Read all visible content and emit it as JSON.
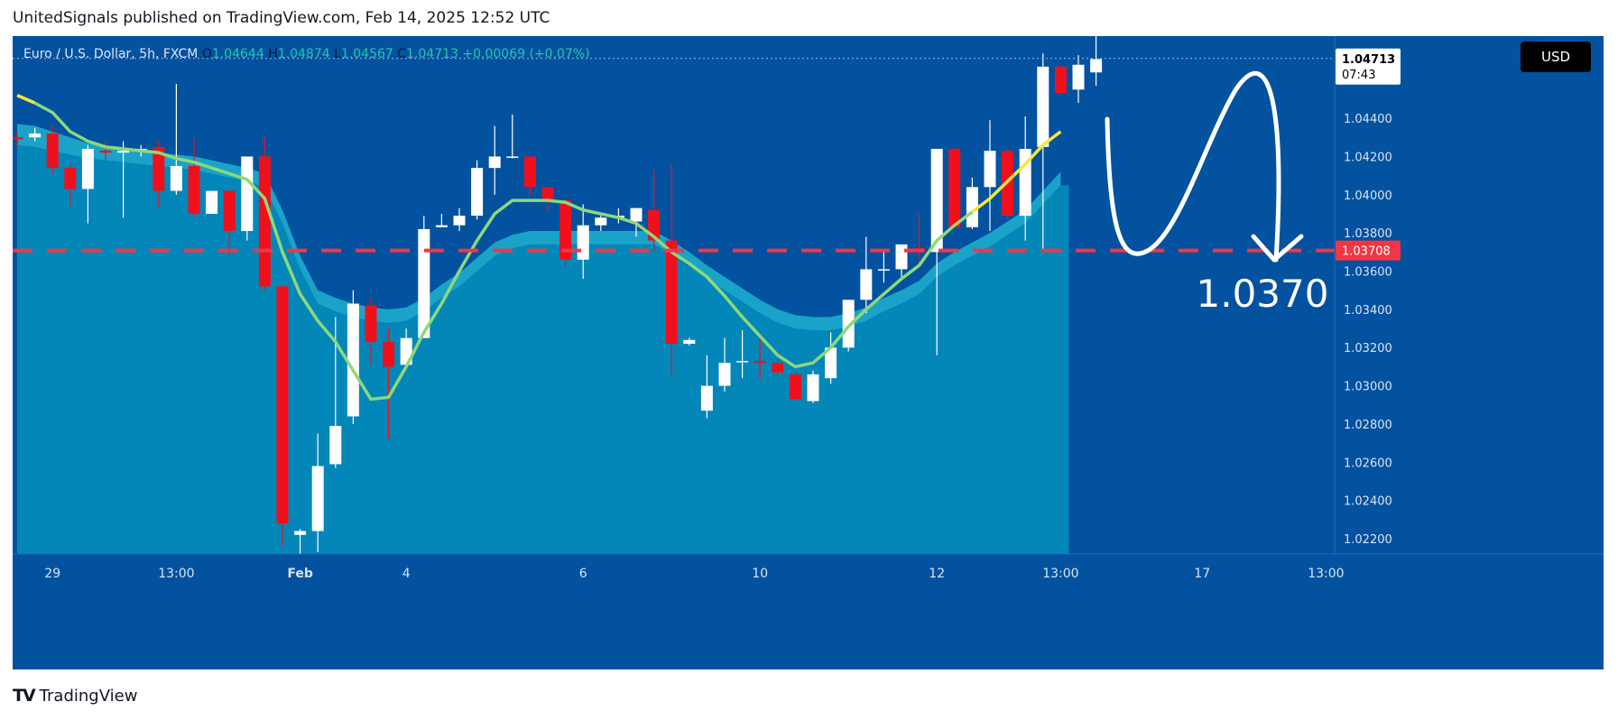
{
  "header": {
    "text": "UnitedSignals published on TradingView.com, Feb 14, 2025 12:52 UTC"
  },
  "legend": {
    "symbol": "Euro / U.S. Dollar, 5h, FXCM",
    "o_label": "O",
    "o_value": "1.04644",
    "h_label": "H",
    "h_value": "1.04874",
    "l_label": "L",
    "l_value": "1.04567",
    "c_label": "C",
    "c_value": "1.04713",
    "change": "+0.00069 (+0.07%)"
  },
  "currency_button": "USD",
  "price_labels": {
    "current": "1.04713",
    "countdown": "07:43",
    "target": "1.03708",
    "big_annotation": "1.0370"
  },
  "footer": {
    "logo_text": "TradingView"
  },
  "colors": {
    "background": "#0352a0",
    "area_fill": "#0387b9",
    "area_band": "#1aa3c9",
    "bull_candle": "#ffffff",
    "bear_candle": "#f0101c",
    "fast_ma_bright": "#f5e83a",
    "fast_ma_dim": "#8ed87a",
    "target_line": "#f23645",
    "arrow": "#ffffff"
  },
  "chart_data": {
    "type": "candlestick",
    "symbol": "EURUSD",
    "timeframe": "5h",
    "y_ticks": [
      1.022,
      1.024,
      1.026,
      1.028,
      1.03,
      1.032,
      1.034,
      1.036,
      1.038,
      1.04,
      1.042,
      1.044
    ],
    "y_tick_labels": [
      "1.02200",
      "1.02400",
      "1.02600",
      "1.02800",
      "1.03000",
      "1.03200",
      "1.03400",
      "1.03600",
      "1.03800",
      "1.04000",
      "1.04200",
      "1.04400"
    ],
    "ylim": [
      1.0212,
      1.0483
    ],
    "x_tick_labels": [
      {
        "label": "29",
        "index": 2
      },
      {
        "label": "13:00",
        "index": 9
      },
      {
        "label": "Feb",
        "index": 16,
        "bold": true
      },
      {
        "label": "4",
        "index": 22
      },
      {
        "label": "6",
        "index": 32
      },
      {
        "label": "10",
        "index": 42
      },
      {
        "label": "12",
        "index": 52
      },
      {
        "label": "13:00",
        "index": 59
      },
      {
        "label": "17",
        "index": 67
      },
      {
        "label": "13:00",
        "index": 74
      }
    ],
    "candles": [
      {
        "o": 1.043,
        "h": 1.0433,
        "l": 1.0425,
        "c": 1.0429
      },
      {
        "o": 1.043,
        "h": 1.0435,
        "l": 1.0428,
        "c": 1.0432
      },
      {
        "o": 1.0432,
        "h": 1.0436,
        "l": 1.0411,
        "c": 1.0414
      },
      {
        "o": 1.0414,
        "h": 1.0416,
        "l": 1.0394,
        "c": 1.0403
      },
      {
        "o": 1.0403,
        "h": 1.0426,
        "l": 1.0385,
        "c": 1.0424
      },
      {
        "o": 1.0423,
        "h": 1.0428,
        "l": 1.0418,
        "c": 1.0422
      },
      {
        "o": 1.0422,
        "h": 1.0428,
        "l": 1.0388,
        "c": 1.0423
      },
      {
        "o": 1.0423,
        "h": 1.0426,
        "l": 1.042,
        "c": 1.0424
      },
      {
        "o": 1.0425,
        "h": 1.0428,
        "l": 1.0393,
        "c": 1.0402
      },
      {
        "o": 1.0402,
        "h": 1.0458,
        "l": 1.04,
        "c": 1.0415
      },
      {
        "o": 1.0415,
        "h": 1.043,
        "l": 1.0388,
        "c": 1.039
      },
      {
        "o": 1.039,
        "h": 1.0402,
        "l": 1.039,
        "c": 1.0402
      },
      {
        "o": 1.0402,
        "h": 1.0403,
        "l": 1.0368,
        "c": 1.0381
      },
      {
        "o": 1.0381,
        "h": 1.042,
        "l": 1.0376,
        "c": 1.042
      },
      {
        "o": 1.042,
        "h": 1.043,
        "l": 1.035,
        "c": 1.0352
      },
      {
        "o": 1.0352,
        "h": 1.0353,
        "l": 1.0216,
        "c": 1.0228
      },
      {
        "o": 1.0222,
        "h": 1.0225,
        "l": 1.0212,
        "c": 1.0224
      },
      {
        "o": 1.0224,
        "h": 1.0275,
        "l": 1.0213,
        "c": 1.0258
      },
      {
        "o": 1.0259,
        "h": 1.0336,
        "l": 1.0257,
        "c": 1.0279
      },
      {
        "o": 1.0284,
        "h": 1.035,
        "l": 1.028,
        "c": 1.0343
      },
      {
        "o": 1.0342,
        "h": 1.0346,
        "l": 1.0311,
        "c": 1.0323
      },
      {
        "o": 1.0323,
        "h": 1.033,
        "l": 1.0272,
        "c": 1.031
      },
      {
        "o": 1.0311,
        "h": 1.033,
        "l": 1.031,
        "c": 1.0325
      },
      {
        "o": 1.0325,
        "h": 1.0389,
        "l": 1.0325,
        "c": 1.0382
      },
      {
        "o": 1.0383,
        "h": 1.039,
        "l": 1.0383,
        "c": 1.0384
      },
      {
        "o": 1.0384,
        "h": 1.0393,
        "l": 1.0381,
        "c": 1.0389
      },
      {
        "o": 1.0389,
        "h": 1.0418,
        "l": 1.0387,
        "c": 1.0414
      },
      {
        "o": 1.0414,
        "h": 1.0436,
        "l": 1.04,
        "c": 1.042
      },
      {
        "o": 1.042,
        "h": 1.0442,
        "l": 1.0419,
        "c": 1.042
      },
      {
        "o": 1.042,
        "h": 1.042,
        "l": 1.04,
        "c": 1.0404
      },
      {
        "o": 1.0404,
        "h": 1.0404,
        "l": 1.0391,
        "c": 1.0397
      },
      {
        "o": 1.0397,
        "h": 1.0398,
        "l": 1.0362,
        "c": 1.0366
      },
      {
        "o": 1.0366,
        "h": 1.0395,
        "l": 1.0356,
        "c": 1.0384
      },
      {
        "o": 1.0384,
        "h": 1.0389,
        "l": 1.0381,
        "c": 1.0388
      },
      {
        "o": 1.0388,
        "h": 1.0393,
        "l": 1.0385,
        "c": 1.0389
      },
      {
        "o": 1.0386,
        "h": 1.0393,
        "l": 1.0378,
        "c": 1.0393
      },
      {
        "o": 1.0392,
        "h": 1.0413,
        "l": 1.037,
        "c": 1.0376
      },
      {
        "o": 1.0376,
        "h": 1.0416,
        "l": 1.0305,
        "c": 1.0322
      },
      {
        "o": 1.0322,
        "h": 1.0325,
        "l": 1.0321,
        "c": 1.0324
      },
      {
        "o": 1.0287,
        "h": 1.0316,
        "l": 1.0283,
        "c": 1.03
      },
      {
        "o": 1.03,
        "h": 1.0325,
        "l": 1.0297,
        "c": 1.0312
      },
      {
        "o": 1.0313,
        "h": 1.0329,
        "l": 1.0304,
        "c": 1.0313
      },
      {
        "o": 1.0313,
        "h": 1.0325,
        "l": 1.0303,
        "c": 1.0312
      },
      {
        "o": 1.0312,
        "h": 1.0314,
        "l": 1.0305,
        "c": 1.0307
      },
      {
        "o": 1.0306,
        "h": 1.0307,
        "l": 1.0293,
        "c": 1.0293
      },
      {
        "o": 1.0292,
        "h": 1.0308,
        "l": 1.0291,
        "c": 1.0306
      },
      {
        "o": 1.0304,
        "h": 1.0328,
        "l": 1.0301,
        "c": 1.032
      },
      {
        "o": 1.032,
        "h": 1.0345,
        "l": 1.0318,
        "c": 1.0345
      },
      {
        "o": 1.0345,
        "h": 1.0378,
        "l": 1.0338,
        "c": 1.0361
      },
      {
        "o": 1.0361,
        "h": 1.037,
        "l": 1.0354,
        "c": 1.0361
      },
      {
        "o": 1.0361,
        "h": 1.0373,
        "l": 1.0357,
        "c": 1.0374
      },
      {
        "o": 1.0372,
        "h": 1.039,
        "l": 1.0364,
        "c": 1.037
      },
      {
        "o": 1.037,
        "h": 1.0424,
        "l": 1.0316,
        "c": 1.0424
      },
      {
        "o": 1.0424,
        "h": 1.0425,
        "l": 1.0383,
        "c": 1.0383
      },
      {
        "o": 1.0383,
        "h": 1.0409,
        "l": 1.0382,
        "c": 1.0404
      },
      {
        "o": 1.0404,
        "h": 1.0439,
        "l": 1.0381,
        "c": 1.0423
      },
      {
        "o": 1.0423,
        "h": 1.0424,
        "l": 1.0387,
        "c": 1.0389
      },
      {
        "o": 1.0389,
        "h": 1.0441,
        "l": 1.0376,
        "c": 1.0424
      },
      {
        "o": 1.0425,
        "h": 1.0474,
        "l": 1.0371,
        "c": 1.0467
      },
      {
        "o": 1.0467,
        "h": 1.0468,
        "l": 1.0453,
        "c": 1.0453
      },
      {
        "o": 1.0455,
        "h": 1.0473,
        "l": 1.0448,
        "c": 1.0468
      },
      {
        "o": 1.0464,
        "h": 1.0487,
        "l": 1.0457,
        "c": 1.0471
      }
    ],
    "fast_ma": [
      1.0452,
      1.0448,
      1.0443,
      1.0433,
      1.0428,
      1.0425,
      1.0424,
      1.0423,
      1.0422,
      1.0419,
      1.0417,
      1.0414,
      1.0411,
      1.0408,
      1.0398,
      1.037,
      1.0348,
      1.0334,
      1.0323,
      1.0308,
      1.0293,
      1.0294,
      1.031,
      1.0328,
      1.0343,
      1.036,
      1.0376,
      1.039,
      1.0397,
      1.0397,
      1.0397,
      1.0396,
      1.0392,
      1.039,
      1.0388,
      1.0385,
      1.0378,
      1.037,
      1.0364,
      1.0357,
      1.0347,
      1.0336,
      1.0326,
      1.0316,
      1.031,
      1.0312,
      1.032,
      1.0331,
      1.034,
      1.0348,
      1.0356,
      1.0363,
      1.0376,
      1.0384,
      1.0391,
      1.0398,
      1.0407,
      1.0416,
      1.0426,
      1.0433
    ],
    "area_upper": [
      1.0437,
      1.0436,
      1.0433,
      1.043,
      1.0427,
      1.0425,
      1.0424,
      1.0423,
      1.0422,
      1.0421,
      1.042,
      1.0418,
      1.0416,
      1.0414,
      1.0411,
      1.0392,
      1.0368,
      1.035,
      1.0346,
      1.0343,
      1.0341,
      1.034,
      1.0341,
      1.0346,
      1.0353,
      1.0359,
      1.0367,
      1.0375,
      1.0379,
      1.0381,
      1.0381,
      1.0381,
      1.0381,
      1.0381,
      1.0381,
      1.0381,
      1.0381,
      1.0376,
      1.037,
      1.0363,
      1.0357,
      1.0351,
      1.0345,
      1.034,
      1.0337,
      1.0336,
      1.0336,
      1.0338,
      1.0341,
      1.0346,
      1.035,
      1.0355,
      1.0364,
      1.037,
      1.0375,
      1.038,
      1.0386,
      1.0392,
      1.0402,
      1.0412
    ],
    "area_lower": [
      1.0426,
      1.0425,
      1.0423,
      1.0421,
      1.0419,
      1.0418,
      1.0417,
      1.0416,
      1.0415,
      1.0414,
      1.0413,
      1.0411,
      1.0409,
      1.0407,
      1.0404,
      1.0385,
      1.0361,
      1.0343,
      1.0339,
      1.0336,
      1.0334,
      1.0333,
      1.0334,
      1.0339,
      1.0346,
      1.0352,
      1.036,
      1.0368,
      1.0372,
      1.0374,
      1.0374,
      1.0374,
      1.0374,
      1.0374,
      1.0374,
      1.0374,
      1.0374,
      1.0369,
      1.0363,
      1.0356,
      1.035,
      1.0344,
      1.0338,
      1.0333,
      1.033,
      1.0329,
      1.0329,
      1.0331,
      1.0334,
      1.0339,
      1.0343,
      1.0348,
      1.0357,
      1.0363,
      1.0368,
      1.0373,
      1.0379,
      1.0385,
      1.0395,
      1.0405
    ],
    "current_price": 1.04713,
    "target_level": 1.03708,
    "projection": "rise then fall to 1.0370"
  }
}
